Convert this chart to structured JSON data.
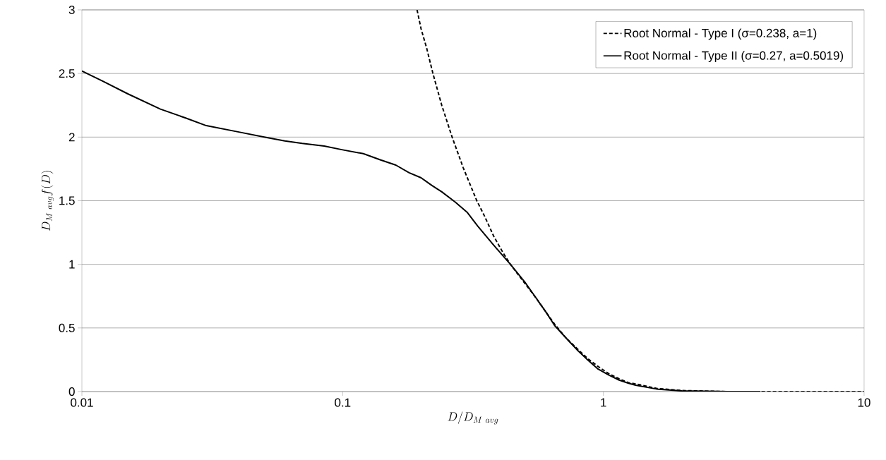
{
  "chart_data": {
    "type": "line",
    "xlabel": "D/D_{M~avg}",
    "ylabel": "D_{M~avg}f(D)",
    "log": "x",
    "grid": "y",
    "legend": "top right",
    "xlim": [
      0.01,
      10
    ],
    "xticks": [
      0.01,
      0.1,
      1,
      10
    ],
    "ylim": [
      0,
      3
    ],
    "yticks": [
      0,
      0.5,
      1,
      1.5,
      2,
      2.5,
      3
    ],
    "series": [
      {
        "name": "Root Normal - Type I (σ=0.238, a=1)",
        "color": "#000000",
        "line_style": "dashed",
        "x": [
          0.193,
          0.2,
          0.21,
          0.222,
          0.24,
          0.263,
          0.29,
          0.327,
          0.35,
          0.38,
          0.41,
          0.44,
          0.5,
          0.55,
          0.6,
          0.65,
          0.72,
          0.8,
          0.87,
          0.95,
          1.05,
          1.15,
          1.25,
          1.33,
          1.6,
          2,
          3,
          10
        ],
        "values": [
          3.0,
          2.85,
          2.7,
          2.5,
          2.25,
          2.0,
          1.76,
          1.5,
          1.38,
          1.22,
          1.1,
          1.0,
          0.85,
          0.74,
          0.63,
          0.53,
          0.42,
          0.33,
          0.26,
          0.2,
          0.14,
          0.1,
          0.07,
          0.06,
          0.025,
          0.008,
          0,
          0
        ]
      },
      {
        "name": "Root Normal - Type II (σ=0.27, a=0.5019)",
        "color": "#000000",
        "line_style": "solid",
        "x": [
          0.01,
          0.012,
          0.015,
          0.02,
          0.025,
          0.03,
          0.04,
          0.05,
          0.06,
          0.07,
          0.085,
          0.1,
          0.12,
          0.14,
          0.16,
          0.18,
          0.2,
          0.22,
          0.24,
          0.27,
          0.3,
          0.33,
          0.38,
          0.44,
          0.5,
          0.55,
          0.6,
          0.65,
          0.72,
          0.8,
          0.87,
          0.95,
          1.05,
          1.15,
          1.25,
          1.33,
          1.6,
          2,
          3,
          4
        ],
        "values": [
          2.52,
          2.44,
          2.34,
          2.22,
          2.15,
          2.09,
          2.04,
          2.0,
          1.97,
          1.95,
          1.93,
          1.9,
          1.87,
          1.82,
          1.78,
          1.72,
          1.68,
          1.62,
          1.57,
          1.49,
          1.41,
          1.3,
          1.15,
          1.0,
          0.86,
          0.74,
          0.63,
          0.52,
          0.42,
          0.32,
          0.25,
          0.18,
          0.13,
          0.09,
          0.065,
          0.05,
          0.02,
          0.005,
          0,
          0
        ]
      }
    ]
  }
}
